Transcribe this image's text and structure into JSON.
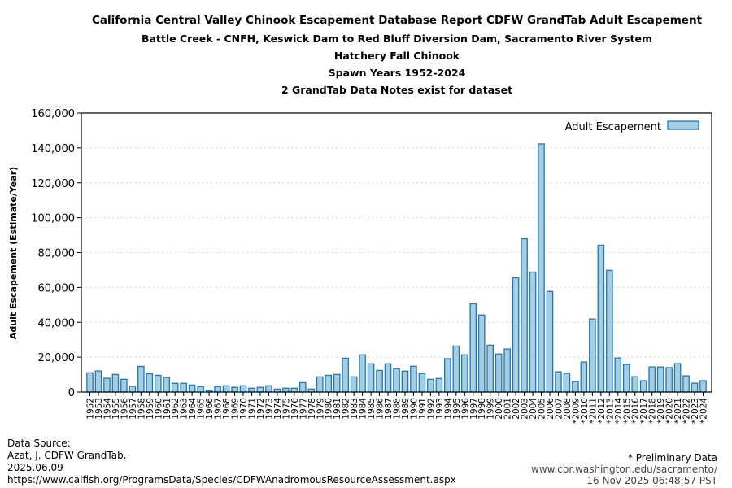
{
  "titles": {
    "main": "California Central Valley Chinook Escapement Database Report CDFW GrandTab Adult Escapement",
    "subtitle1": "Battle Creek - CNFH, Keswick Dam to Red Bluff Diversion Dam, Sacramento River System",
    "subtitle2": "Hatchery Fall Chinook",
    "subtitle3": "Spawn Years 1952-2024",
    "subtitle4": "2 GrandTab Data Notes exist for dataset"
  },
  "chart_data": {
    "type": "bar",
    "title": "California Central Valley Chinook Escapement Database Report CDFW GrandTab Adult Escapement",
    "xlabel": "",
    "ylabel": "Adult Escapement (Estimate/Year)",
    "ylim": [
      0,
      160000
    ],
    "yticks": [
      0,
      20000,
      40000,
      60000,
      80000,
      100000,
      120000,
      140000,
      160000
    ],
    "ytick_labels": [
      "0",
      "20,000",
      "40,000",
      "60,000",
      "80,000",
      "100,000",
      "120,000",
      "140,000",
      "160,000"
    ],
    "grid": "y-dotted",
    "legend": {
      "position": "top-right",
      "entries": [
        "Adult Escapement"
      ]
    },
    "colors": {
      "fill": "#a6cee3",
      "edge": "#1f78b4",
      "grid": "#c8c8c8"
    },
    "preliminary_marker": "*",
    "categories": [
      "1952",
      "1953",
      "1954",
      "1955",
      "1956",
      "1957",
      "1958",
      "1959",
      "1960",
      "1961",
      "1962",
      "1963",
      "1964",
      "1965",
      "1966",
      "1967",
      "1968",
      "1969",
      "1970",
      "1971",
      "1972",
      "1973",
      "1974",
      "1975",
      "1976",
      "1977",
      "1978",
      "1979",
      "1980",
      "1981",
      "1982",
      "1983",
      "1984",
      "1985",
      "1986",
      "1987",
      "1988",
      "1989",
      "1990",
      "1991",
      "1992",
      "1993",
      "1994",
      "1995",
      "1996",
      "1997",
      "1998",
      "1999",
      "2000",
      "2001",
      "2002",
      "2003",
      "2004",
      "2005",
      "2006",
      "2007",
      "2008",
      "*2009",
      "*2010",
      "*2011",
      "*2012",
      "*2013",
      "*2014",
      "*2015",
      "*2016",
      "*2017",
      "*2018",
      "*2019",
      "*2020",
      "*2021",
      "*2022",
      "*2023",
      "*2024"
    ],
    "series": [
      {
        "name": "Adult Escapement",
        "values": [
          11000,
          12100,
          7900,
          10100,
          7300,
          3300,
          14700,
          10500,
          9600,
          8400,
          5000,
          5000,
          4000,
          3100,
          800,
          3100,
          3600,
          2700,
          3600,
          2200,
          2700,
          3600,
          1700,
          2200,
          2200,
          5400,
          1700,
          8700,
          9600,
          10100,
          19400,
          8700,
          21300,
          16200,
          12400,
          16200,
          13400,
          12000,
          14800,
          10600,
          7300,
          7800,
          19100,
          26400,
          21300,
          50700,
          44200,
          26900,
          21800,
          24700,
          65600,
          87900,
          68800,
          142300,
          57700,
          11600,
          10700,
          6000,
          17200,
          41900,
          84200,
          69800,
          19500,
          15800,
          8800,
          6500,
          14400,
          14400,
          14000,
          16300,
          9300,
          5100,
          6500
        ]
      }
    ]
  },
  "footer": {
    "source_label": "Data Source:",
    "source_author": "Azat, J. CDFW GrandTab.",
    "source_date": "2025.06.09",
    "source_url": "https://www.calfish.org/ProgramsData/Species/CDFWAnadromousResourceAssessment.aspx",
    "preliminary_note": "* Preliminary Data",
    "site_url": "www.cbr.washington.edu/sacramento/",
    "generated": "16 Nov 2025 06:48:57 PST"
  }
}
